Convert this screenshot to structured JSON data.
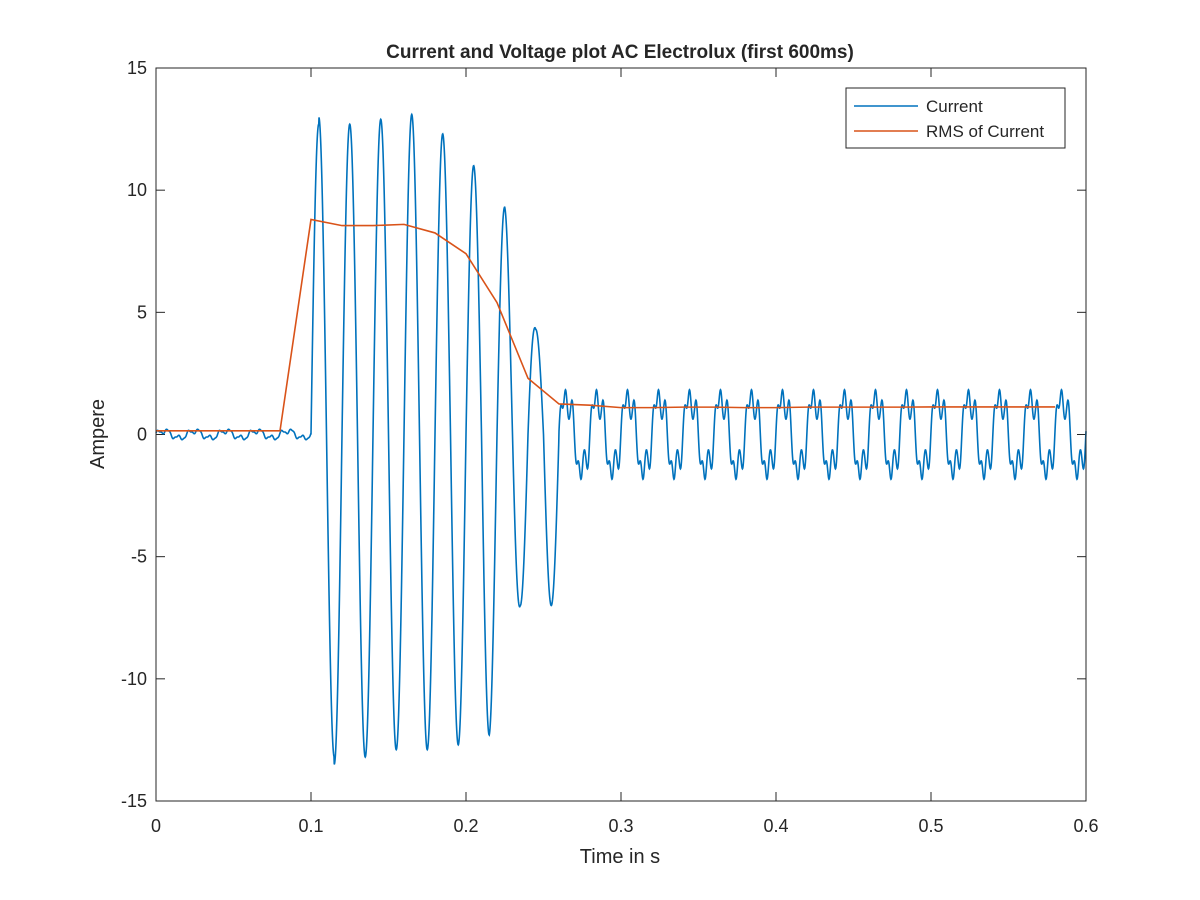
{
  "chart_data": {
    "type": "line",
    "title": "Current and Voltage plot AC Electrolux (first 600ms)",
    "xlabel": "Time in s",
    "ylabel": "Ampere",
    "xlim": [
      0,
      0.6
    ],
    "ylim": [
      -15,
      15
    ],
    "xticks": [
      0,
      0.1,
      0.2,
      0.3,
      0.4,
      0.5,
      0.6
    ],
    "xtick_labels": [
      "0",
      "0.1",
      "0.2",
      "0.3",
      "0.4",
      "0.5",
      "0.6"
    ],
    "yticks": [
      -15,
      -10,
      -5,
      0,
      5,
      10,
      15
    ],
    "ytick_labels": [
      "-15",
      "-10",
      "-5",
      "0",
      "5",
      "10",
      "15"
    ],
    "grid": false,
    "legend_position": "top-right",
    "series": [
      {
        "name": "Current",
        "color": "#0072bd",
        "mains_frequency_hz": 50,
        "segments": [
          {
            "t_start": 0.0,
            "t_end": 0.1,
            "steady_peak": 0.25
          },
          {
            "t_start": 0.1,
            "t_end": 0.26,
            "peaks_pos": [
              13.0,
              12.7,
              12.9,
              13.1,
              12.3,
              11.0,
              9.3,
              4.3
            ],
            "peaks_neg": [
              -13.5,
              -13.2,
              -12.9,
              -12.9,
              -12.7,
              -12.3,
              -7.0
            ]
          },
          {
            "t_start": 0.26,
            "t_end": 0.6,
            "steady_max": 2.3,
            "steady_min": -2.2
          }
        ]
      },
      {
        "name": "RMS of Current",
        "color": "#d95319",
        "x": [
          0,
          0.02,
          0.04,
          0.06,
          0.08,
          0.1,
          0.12,
          0.14,
          0.16,
          0.18,
          0.2,
          0.22,
          0.24,
          0.26,
          0.28,
          0.3,
          0.32,
          0.34,
          0.36,
          0.38,
          0.4,
          0.42,
          0.44,
          0.46,
          0.48,
          0.5,
          0.52,
          0.54,
          0.56,
          0.58
        ],
        "y": [
          0.15,
          0.15,
          0.15,
          0.15,
          0.15,
          8.8,
          8.55,
          8.55,
          8.6,
          8.25,
          7.4,
          5.4,
          2.3,
          1.25,
          1.2,
          1.1,
          1.1,
          1.12,
          1.12,
          1.1,
          1.1,
          1.12,
          1.12,
          1.12,
          1.12,
          1.13,
          1.13,
          1.13,
          1.13,
          1.13
        ]
      }
    ]
  }
}
